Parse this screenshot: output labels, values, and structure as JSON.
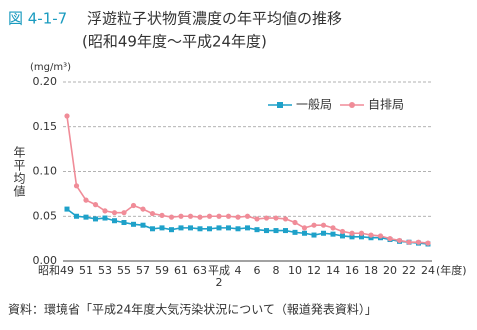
{
  "chart_data": {
    "type": "line",
    "figure_label": "図 4-1-7",
    "title": "浮遊粒子状物質濃度の年平均値の推移",
    "subtitle": "(昭和49年度～平成24年度)",
    "y_unit": "(mg/m³)",
    "y_label": "年平均値",
    "x_unit": "(年度)",
    "source": "資料：環境省「平成24年度大気汚染状況について（報道発表資料）」",
    "categories": [
      "昭和49",
      null,
      "51",
      null,
      "53",
      null,
      "55",
      null,
      "57",
      null,
      "59",
      null,
      "61",
      null,
      "63",
      null,
      "平成2",
      null,
      "4",
      null,
      "6",
      null,
      "8",
      null,
      "10",
      null,
      "12",
      null,
      "14",
      null,
      "16",
      null,
      "18",
      null,
      "20",
      null,
      "22",
      null,
      "24"
    ],
    "series": [
      {
        "name": "一般局",
        "color": "#1ea1c9",
        "marker": "square",
        "values": [
          0.058,
          0.05,
          0.049,
          0.047,
          0.048,
          0.045,
          0.043,
          0.041,
          0.04,
          0.036,
          0.037,
          0.035,
          0.037,
          0.037,
          0.036,
          0.036,
          0.037,
          0.037,
          0.036,
          0.037,
          0.035,
          0.034,
          0.034,
          0.034,
          0.032,
          0.031,
          0.029,
          0.031,
          0.03,
          0.028,
          0.027,
          0.027,
          0.026,
          0.026,
          0.024,
          0.022,
          0.021,
          0.02,
          0.019
        ]
      },
      {
        "name": "自排局",
        "color": "#f08c98",
        "marker": "circle",
        "values": [
          0.162,
          0.084,
          0.068,
          0.063,
          0.056,
          0.054,
          0.054,
          0.062,
          0.058,
          0.053,
          0.051,
          0.049,
          0.05,
          0.05,
          0.049,
          0.05,
          0.05,
          0.05,
          0.049,
          0.05,
          0.047,
          0.048,
          0.048,
          0.047,
          0.043,
          0.037,
          0.04,
          0.04,
          0.037,
          0.033,
          0.031,
          0.031,
          0.029,
          0.028,
          0.025,
          0.023,
          0.021,
          0.021,
          0.02
        ]
      }
    ],
    "ylim": [
      0,
      0.2
    ],
    "yticks": [
      {
        "value": 0,
        "label": "0.00"
      },
      0.05,
      {
        "value": 0.1,
        "label": "0.10"
      },
      0.15,
      {
        "value": 0.2,
        "label": "0.20"
      }
    ],
    "grid": true,
    "legend": "upper right"
  }
}
